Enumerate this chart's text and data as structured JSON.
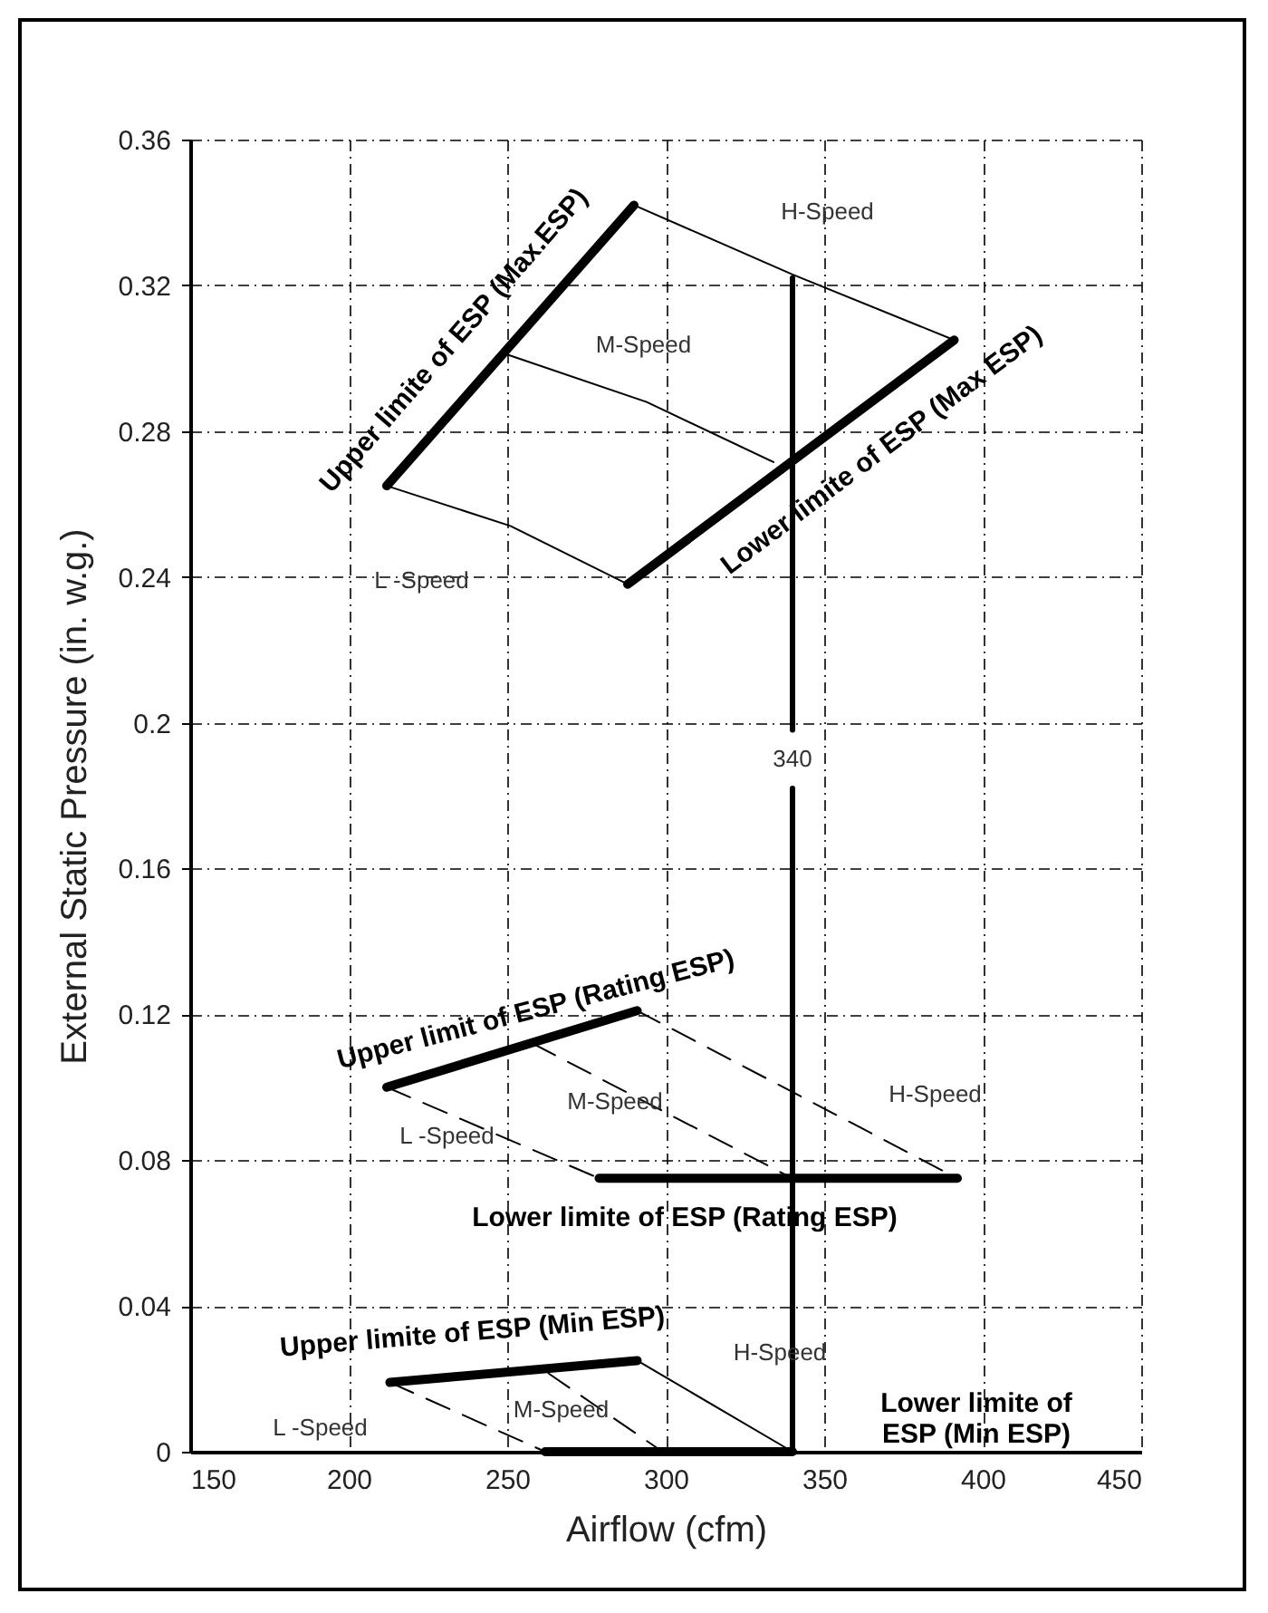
{
  "chart_data": {
    "type": "line",
    "xlabel": "Airflow (cfm)",
    "ylabel": "External Static Pressure (in. w.g.)",
    "xlim": [
      150,
      450
    ],
    "xticks": [
      150,
      200,
      250,
      300,
      350,
      400,
      450
    ],
    "ylim": [
      0,
      0.36
    ],
    "yticks": [
      {
        "value": 0,
        "label": "0"
      },
      0.04,
      0.08,
      0.12,
      0.16,
      {
        "value": 0.2,
        "label": "0.2"
      },
      0.24,
      0.28,
      0.32,
      0.36
    ],
    "grid": true,
    "marker": "none",
    "series": [
      {
        "color": "#000000",
        "line_style": "solid",
        "x": [
          212,
          290
        ],
        "values": [
          0.265,
          0.342
        ]
      },
      {
        "color": "#000000",
        "line_style": "solid",
        "x": [
          288,
          391
        ],
        "values": [
          0.238,
          0.305
        ]
      },
      {
        "color": "#000000",
        "line_style": "solid",
        "x": [
          290,
          340,
          391
        ],
        "values": [
          0.342,
          0.323,
          0.305
        ]
      },
      {
        "color": "#000000",
        "line_style": "solid",
        "x": [
          250,
          294,
          334
        ],
        "values": [
          0.301,
          0.288,
          0.2715
        ]
      },
      {
        "color": "#000000",
        "line_style": "solid",
        "x": [
          212,
          251,
          288
        ],
        "values": [
          0.265,
          0.254,
          0.238
        ]
      },
      {
        "color": "#000000",
        "line_style": "solid",
        "x": [
          340,
          340
        ],
        "values": [
          0,
          0.182
        ]
      },
      {
        "color": "#000000",
        "line_style": "solid",
        "x": [
          340,
          340
        ],
        "values": [
          0.198,
          0.322
        ]
      },
      {
        "color": "#000000",
        "line_style": "solid",
        "x": [
          212,
          291
        ],
        "values": [
          0.1,
          0.121
        ]
      },
      {
        "color": "#000000",
        "line_style": "solid",
        "x": [
          279,
          392
        ],
        "values": [
          0.075,
          0.075
        ]
      },
      {
        "color": "#000000",
        "line_style": "dashed",
        "x": [
          291,
          392
        ],
        "values": [
          0.121,
          0.075
        ]
      },
      {
        "color": "#000000",
        "line_style": "dashed",
        "x": [
          258,
          340
        ],
        "values": [
          0.112,
          0.075
        ]
      },
      {
        "color": "#000000",
        "line_style": "dashed",
        "x": [
          212,
          279
        ],
        "values": [
          0.1,
          0.075
        ]
      },
      {
        "color": "#000000",
        "line_style": "solid",
        "x": [
          213,
          291
        ],
        "values": [
          0.019,
          0.025
        ]
      },
      {
        "color": "#000000",
        "line_style": "solid",
        "x": [
          262,
          340
        ],
        "values": [
          0,
          0
        ]
      },
      {
        "color": "#000000",
        "line_style": "solid",
        "x": [
          291,
          340
        ],
        "values": [
          0.025,
          0
        ]
      },
      {
        "color": "#000000",
        "line_style": "dashed",
        "x": [
          263,
          299
        ],
        "values": [
          0.0215,
          0
        ]
      },
      {
        "color": "#000000",
        "line_style": "dashed",
        "x": [
          213,
          262
        ],
        "values": [
          0.019,
          0
        ]
      }
    ],
    "annotations": [
      "H-Speed",
      "M-Speed",
      "L -Speed",
      "Upper limite of ESP (Max.ESP)",
      "Lower limite of ESP (Max ESP)",
      "340",
      "Upper limit of ESP (Rating ESP)",
      "M-Speed",
      "L -Speed",
      "H-Speed",
      "Lower limite of ESP (Rating  ESP)",
      "Upper limite of ESP (Min ESP)",
      "H-Speed",
      "M-Speed",
      "L -Speed",
      "Lower limite of\nESP (Min ESP)"
    ]
  }
}
